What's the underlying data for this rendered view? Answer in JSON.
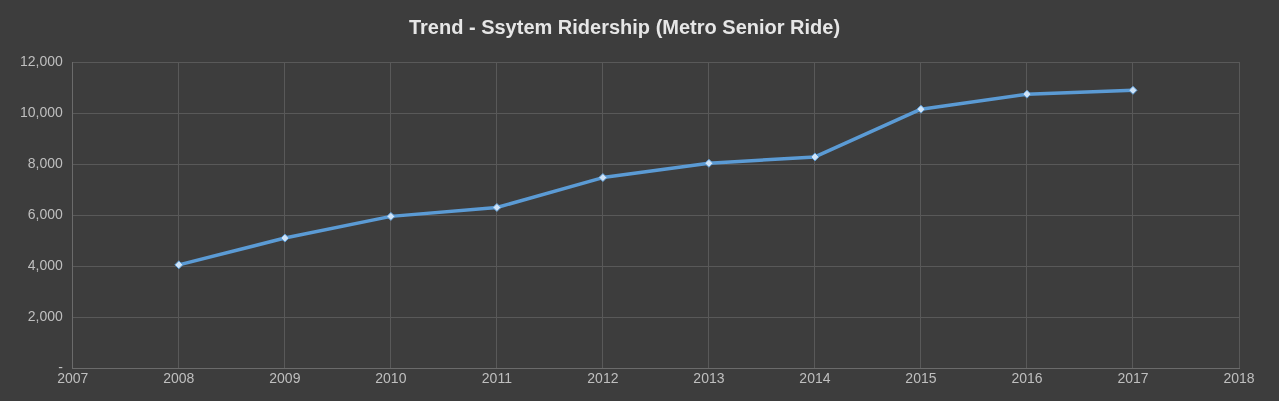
{
  "chart_data": {
    "type": "line",
    "title": "Trend - Ssytem Ridership (Metro Senior Ride)",
    "x": [
      2008,
      2009,
      2010,
      2011,
      2012,
      2013,
      2014,
      2015,
      2016,
      2017
    ],
    "series": [
      {
        "color": "#5b9bd5",
        "values": [
          4050,
          5100,
          5950,
          6300,
          7470,
          8030,
          8280,
          10150,
          10740,
          10890
        ]
      }
    ],
    "xlim": [
      2007,
      2018
    ],
    "xticks": [
      2007,
      2008,
      2009,
      2010,
      2011,
      2012,
      2013,
      2014,
      2015,
      2016,
      2017,
      2018
    ],
    "ylim": [
      0,
      12000
    ],
    "yticks": [
      {
        "value": 0,
        "label": "-"
      },
      {
        "value": 2000,
        "label": "2,000"
      },
      {
        "value": 4000,
        "label": "4,000"
      },
      {
        "value": 6000,
        "label": "6,000"
      },
      {
        "value": 8000,
        "label": "8,000"
      },
      {
        "value": 10000,
        "label": "10,000"
      },
      {
        "value": 12000,
        "label": "12,000"
      }
    ],
    "grid": true,
    "legend": false,
    "marker": "diamond",
    "line_style": "solid"
  }
}
